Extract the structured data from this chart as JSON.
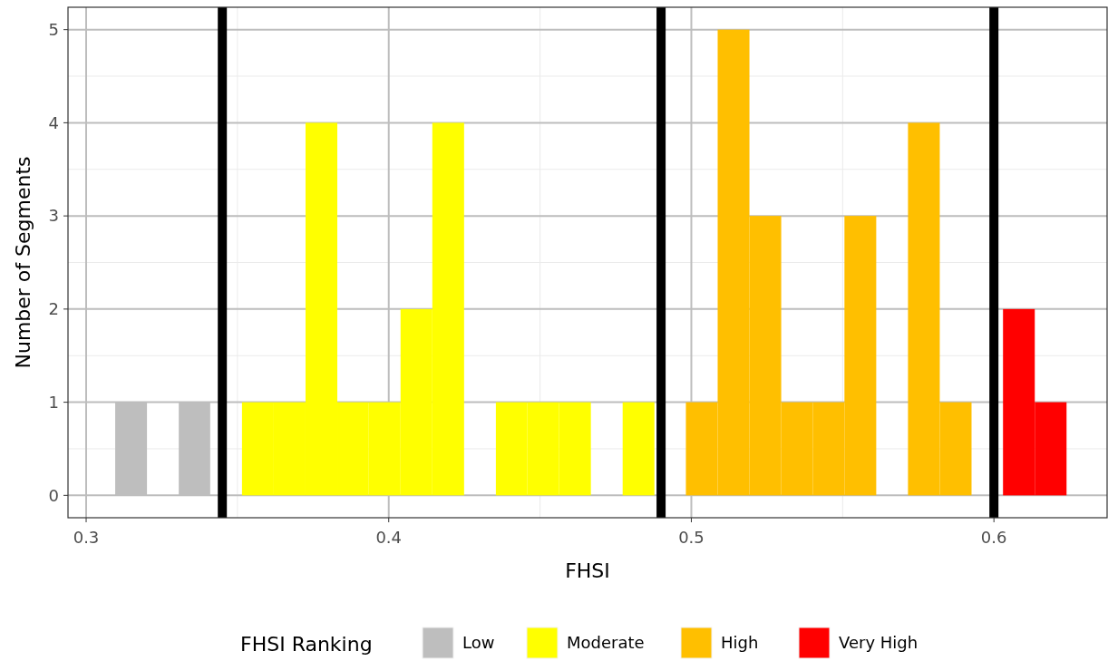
{
  "chart_data": {
    "type": "histogram",
    "xlabel": "FHSI",
    "ylabel": "Number of Segments",
    "legend_title": "FHSI Ranking",
    "bins": [
      0.3096,
      0.3201,
      0.3306,
      0.341,
      0.3515,
      0.362,
      0.3725,
      0.383,
      0.3934,
      0.4039,
      0.4144,
      0.4249,
      0.4354,
      0.4458,
      0.4563,
      0.4668,
      0.4773,
      0.4878,
      0.4982,
      0.5087,
      0.5192,
      0.5297,
      0.5402,
      0.5506,
      0.5611,
      0.5716,
      0.5821,
      0.5926,
      0.603,
      0.6135,
      0.624
    ],
    "series": [
      {
        "name": "Low",
        "color": "#bebebe",
        "values": [
          1,
          0,
          1,
          0,
          null,
          null,
          null,
          null,
          null,
          null,
          null,
          null,
          null,
          null,
          null,
          null,
          null,
          null,
          null,
          null,
          null,
          null,
          null,
          null,
          null,
          null,
          null,
          null,
          null,
          null
        ]
      },
      {
        "name": "Moderate",
        "color": "#ffff00",
        "values": [
          null,
          null,
          null,
          null,
          1,
          1,
          4,
          1,
          1,
          2,
          4,
          0,
          1,
          1,
          1,
          0,
          1,
          0,
          null,
          null,
          null,
          null,
          null,
          null,
          null,
          null,
          null,
          null,
          null,
          null
        ]
      },
      {
        "name": "High",
        "color": "#ffbf00",
        "values": [
          null,
          null,
          null,
          null,
          null,
          null,
          null,
          null,
          null,
          null,
          null,
          null,
          null,
          null,
          null,
          null,
          null,
          null,
          1,
          5,
          3,
          1,
          1,
          3,
          0,
          4,
          1,
          0,
          null,
          null
        ]
      },
      {
        "name": "Very High",
        "color": "#ff0000",
        "values": [
          null,
          null,
          null,
          null,
          null,
          null,
          null,
          null,
          null,
          null,
          null,
          null,
          null,
          null,
          null,
          null,
          null,
          null,
          null,
          null,
          null,
          null,
          null,
          null,
          null,
          null,
          null,
          null,
          2,
          1
        ]
      }
    ],
    "xlim": [
      0.294,
      0.6374
    ],
    "xticks": [
      0.3,
      0.4,
      0.5,
      0.6
    ],
    "ylim": [
      -0.24,
      5.24
    ],
    "yticks": [
      0,
      1,
      2,
      3,
      4,
      5
    ],
    "ref_lines": [
      {
        "axis": "x",
        "value": 0.345,
        "color": "#000000"
      },
      {
        "axis": "x",
        "value": 0.49,
        "color": "#000000"
      },
      {
        "axis": "x",
        "value": 0.6,
        "color": "#000000"
      }
    ],
    "grid": true,
    "legend": "bottom"
  }
}
